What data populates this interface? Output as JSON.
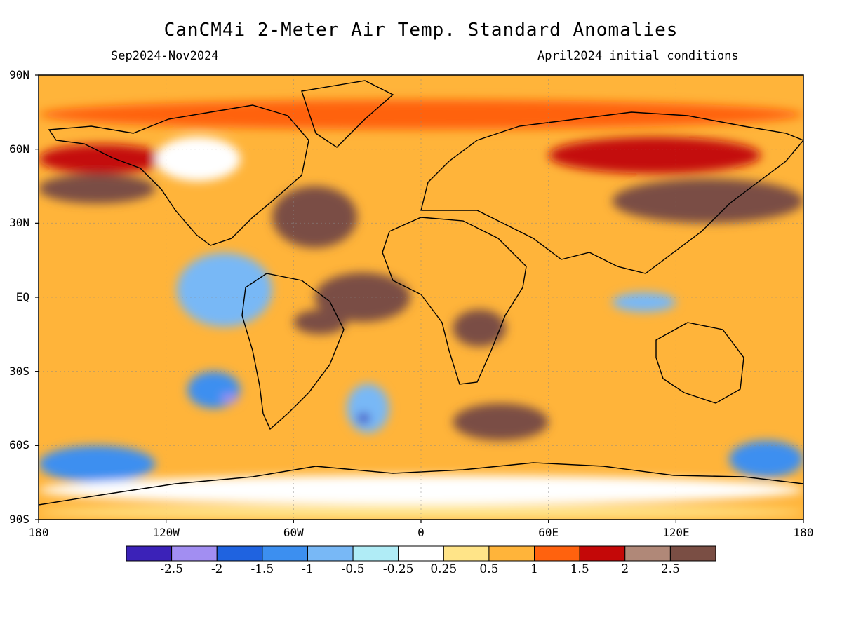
{
  "header": {
    "title": "CanCM4i 2-Meter Air Temp. Standard Anomalies",
    "period": "Sep2024-Nov2024",
    "init": "April2024 initial conditions"
  },
  "axes": {
    "lat_labels": [
      "90N",
      "60N",
      "30N",
      "EQ",
      "30S",
      "60S",
      "90S"
    ],
    "lat_values": [
      90,
      60,
      30,
      0,
      -30,
      -60,
      -90
    ],
    "lon_labels": [
      "180",
      "120W",
      "60W",
      "0",
      "60E",
      "120E",
      "180"
    ],
    "lon_values": [
      -180,
      -120,
      -60,
      0,
      60,
      120,
      180
    ]
  },
  "colorbar": {
    "labels": [
      "-2.5",
      "-2",
      "-1.5",
      "-1",
      "-0.5",
      "-0.25",
      "0.25",
      "0.5",
      "1",
      "1.5",
      "2",
      "2.5"
    ],
    "colors": [
      "#3b22b8",
      "#a28ef2",
      "#1f63e0",
      "#3c8ff0",
      "#78b8f6",
      "#b0ecf6",
      "#ffffff",
      "#ffe488",
      "#ffb43a",
      "#ff620e",
      "#c40808",
      "#b08878",
      "#7a4e44"
    ]
  },
  "map": {
    "domain": {
      "lon": [
        -180,
        180
      ],
      "lat": [
        -90,
        90
      ]
    },
    "background_color": "#ffb43a",
    "regions": [
      {
        "name": "arctic-warm-band",
        "color": "#ff620e",
        "lon": -180,
        "lat": 80,
        "w": 360,
        "h": 12
      },
      {
        "name": "nw-pacific-warm",
        "color": "#c40808",
        "lon": -180,
        "lat": 62,
        "w": 60,
        "h": 12
      },
      {
        "name": "north-pacific-hot",
        "color": "#7a4e44",
        "lon": -180,
        "lat": 50,
        "w": 55,
        "h": 12
      },
      {
        "name": "north-america-cool",
        "color": "#ffffff",
        "lon": -125,
        "lat": 65,
        "w": 40,
        "h": 18
      },
      {
        "name": "north-atlantic-hot",
        "color": "#7a4e44",
        "lon": -70,
        "lat": 45,
        "w": 40,
        "h": 25
      },
      {
        "name": "eurasia-warm",
        "color": "#c40808",
        "lon": 60,
        "lat": 65,
        "w": 100,
        "h": 15
      },
      {
        "name": "east-asia-hot",
        "color": "#7a4e44",
        "lon": 90,
        "lat": 48,
        "w": 90,
        "h": 18
      },
      {
        "name": "tropical-atlantic-hot",
        "color": "#7a4e44",
        "lon": -50,
        "lat": 10,
        "w": 45,
        "h": 20
      },
      {
        "name": "amazon-hot",
        "color": "#7a4e44",
        "lon": -60,
        "lat": -5,
        "w": 25,
        "h": 10
      },
      {
        "name": "africa-hot",
        "color": "#7a4e44",
        "lon": 15,
        "lat": -5,
        "w": 25,
        "h": 15
      },
      {
        "name": "east-pacific-cool",
        "color": "#78b8f6",
        "lon": -115,
        "lat": 18,
        "w": 45,
        "h": 30
      },
      {
        "name": "south-pacific-cool",
        "color": "#3c8ff0",
        "lon": -110,
        "lat": -30,
        "w": 25,
        "h": 15
      },
      {
        "name": "south-pacific-coldest",
        "color": "#a28ef2",
        "lon": -94,
        "lat": -39,
        "w": 8,
        "h": 4
      },
      {
        "name": "south-atlantic-cool",
        "color": "#78b8f6",
        "lon": -35,
        "lat": -35,
        "w": 20,
        "h": 20
      },
      {
        "name": "south-atlantic-coldest",
        "color": "#3b22b8",
        "lon": -30,
        "lat": -47,
        "w": 6,
        "h": 4
      },
      {
        "name": "indian-ocean-hot",
        "color": "#7a4e44",
        "lon": 15,
        "lat": -43,
        "w": 45,
        "h": 15
      },
      {
        "name": "west-pacific-cool",
        "color": "#78b8f6",
        "lon": 90,
        "lat": 2,
        "w": 30,
        "h": 8
      },
      {
        "name": "southern-ocean-pacific-cool",
        "color": "#3c8ff0",
        "lon": -180,
        "lat": -60,
        "w": 55,
        "h": 15
      },
      {
        "name": "southern-ocean-east-cool",
        "color": "#3c8ff0",
        "lon": 145,
        "lat": -58,
        "w": 35,
        "h": 15
      },
      {
        "name": "antarctica-neutral",
        "color": "#ffffff",
        "lon": -180,
        "lat": -72,
        "w": 360,
        "h": 12
      },
      {
        "name": "antarctica-coast-warm",
        "color": "#ffe488",
        "lon": -180,
        "lat": -84,
        "w": 360,
        "h": 6
      }
    ]
  }
}
